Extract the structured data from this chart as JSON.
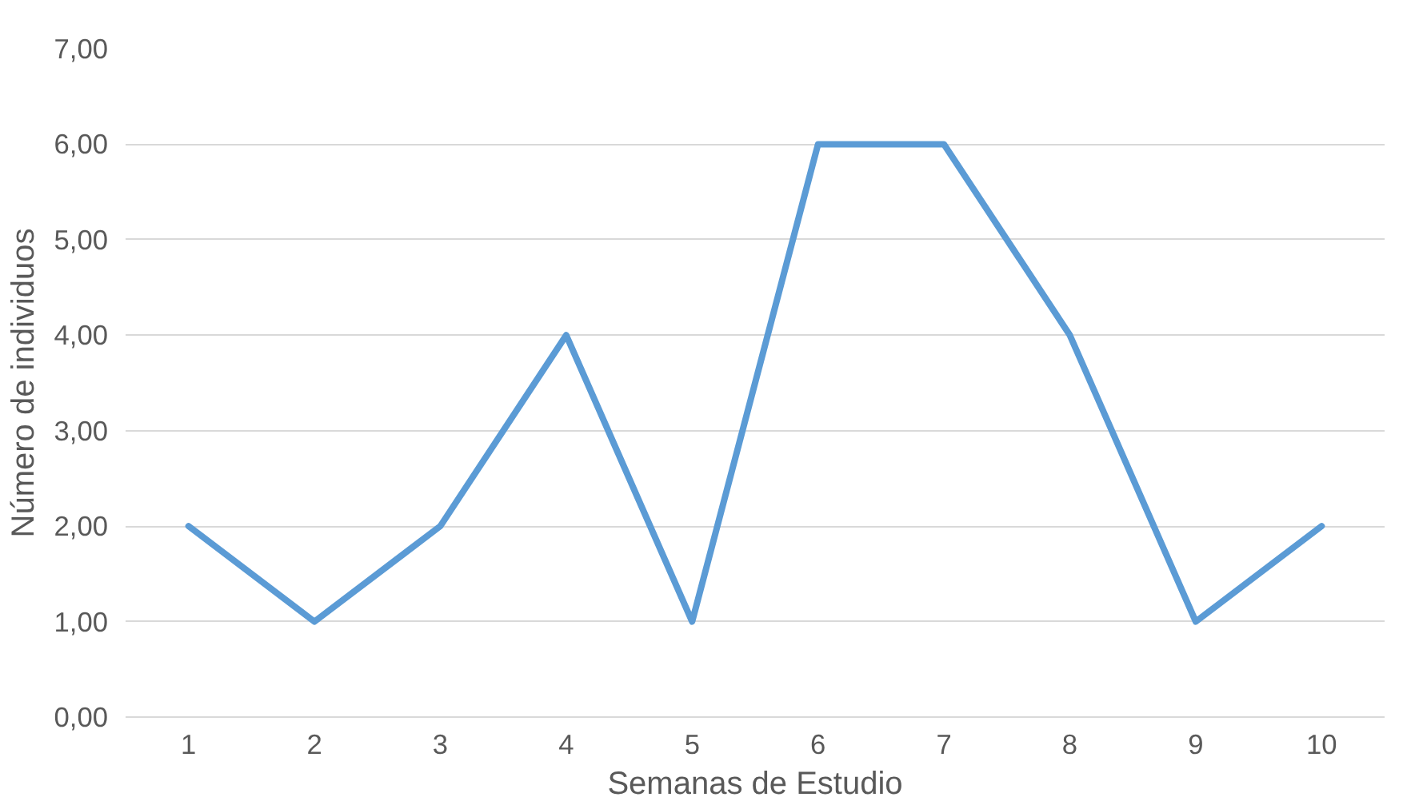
{
  "chart_data": {
    "type": "line",
    "xlabel": "Semanas de Estudio",
    "ylabel": "Número de individuos",
    "categories": [
      "1",
      "2",
      "3",
      "4",
      "5",
      "6",
      "7",
      "8",
      "9",
      "10"
    ],
    "series": [
      {
        "color": "#5b9bd5",
        "values": [
          2,
          1,
          2,
          4,
          1,
          6,
          6,
          4,
          1,
          2
        ]
      }
    ],
    "ylim": [
      0,
      7
    ],
    "yticks": [
      {
        "value": 0,
        "label": "0,00"
      },
      {
        "value": 1,
        "label": "1,00"
      },
      {
        "value": 2,
        "label": "2,00"
      },
      {
        "value": 3,
        "label": "3,00"
      },
      {
        "value": 4,
        "label": "4,00"
      },
      {
        "value": 5,
        "label": "5,00"
      },
      {
        "value": 6,
        "label": "6,00"
      },
      {
        "value": 7,
        "label": "7,00"
      }
    ],
    "grid": "y",
    "marker": "none",
    "line_style": "solid"
  }
}
